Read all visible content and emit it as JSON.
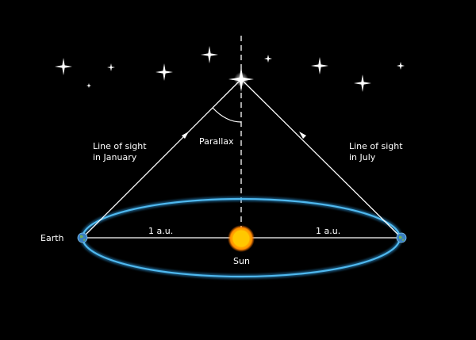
{
  "labels": {
    "earth": "Earth",
    "sun": "Sun",
    "parallax": "Parallax",
    "au_left": "1 a.u.",
    "au_right": "1 a.u.",
    "sight_january_line1": "Line of sight",
    "sight_january_line2": "in January",
    "sight_july_line1": "Line of sight",
    "sight_july_line2": "in July"
  },
  "colors": {
    "background": "#000000",
    "orbit": "#3aa8e0",
    "sun_core": "#ffd000",
    "sun_glow": "#ff7a00",
    "lines": "#ffffff",
    "earth": "#3a7fc0"
  },
  "icons": {
    "star": "four-point-star",
    "earth": "earth-globe",
    "sun": "sun-disc"
  }
}
